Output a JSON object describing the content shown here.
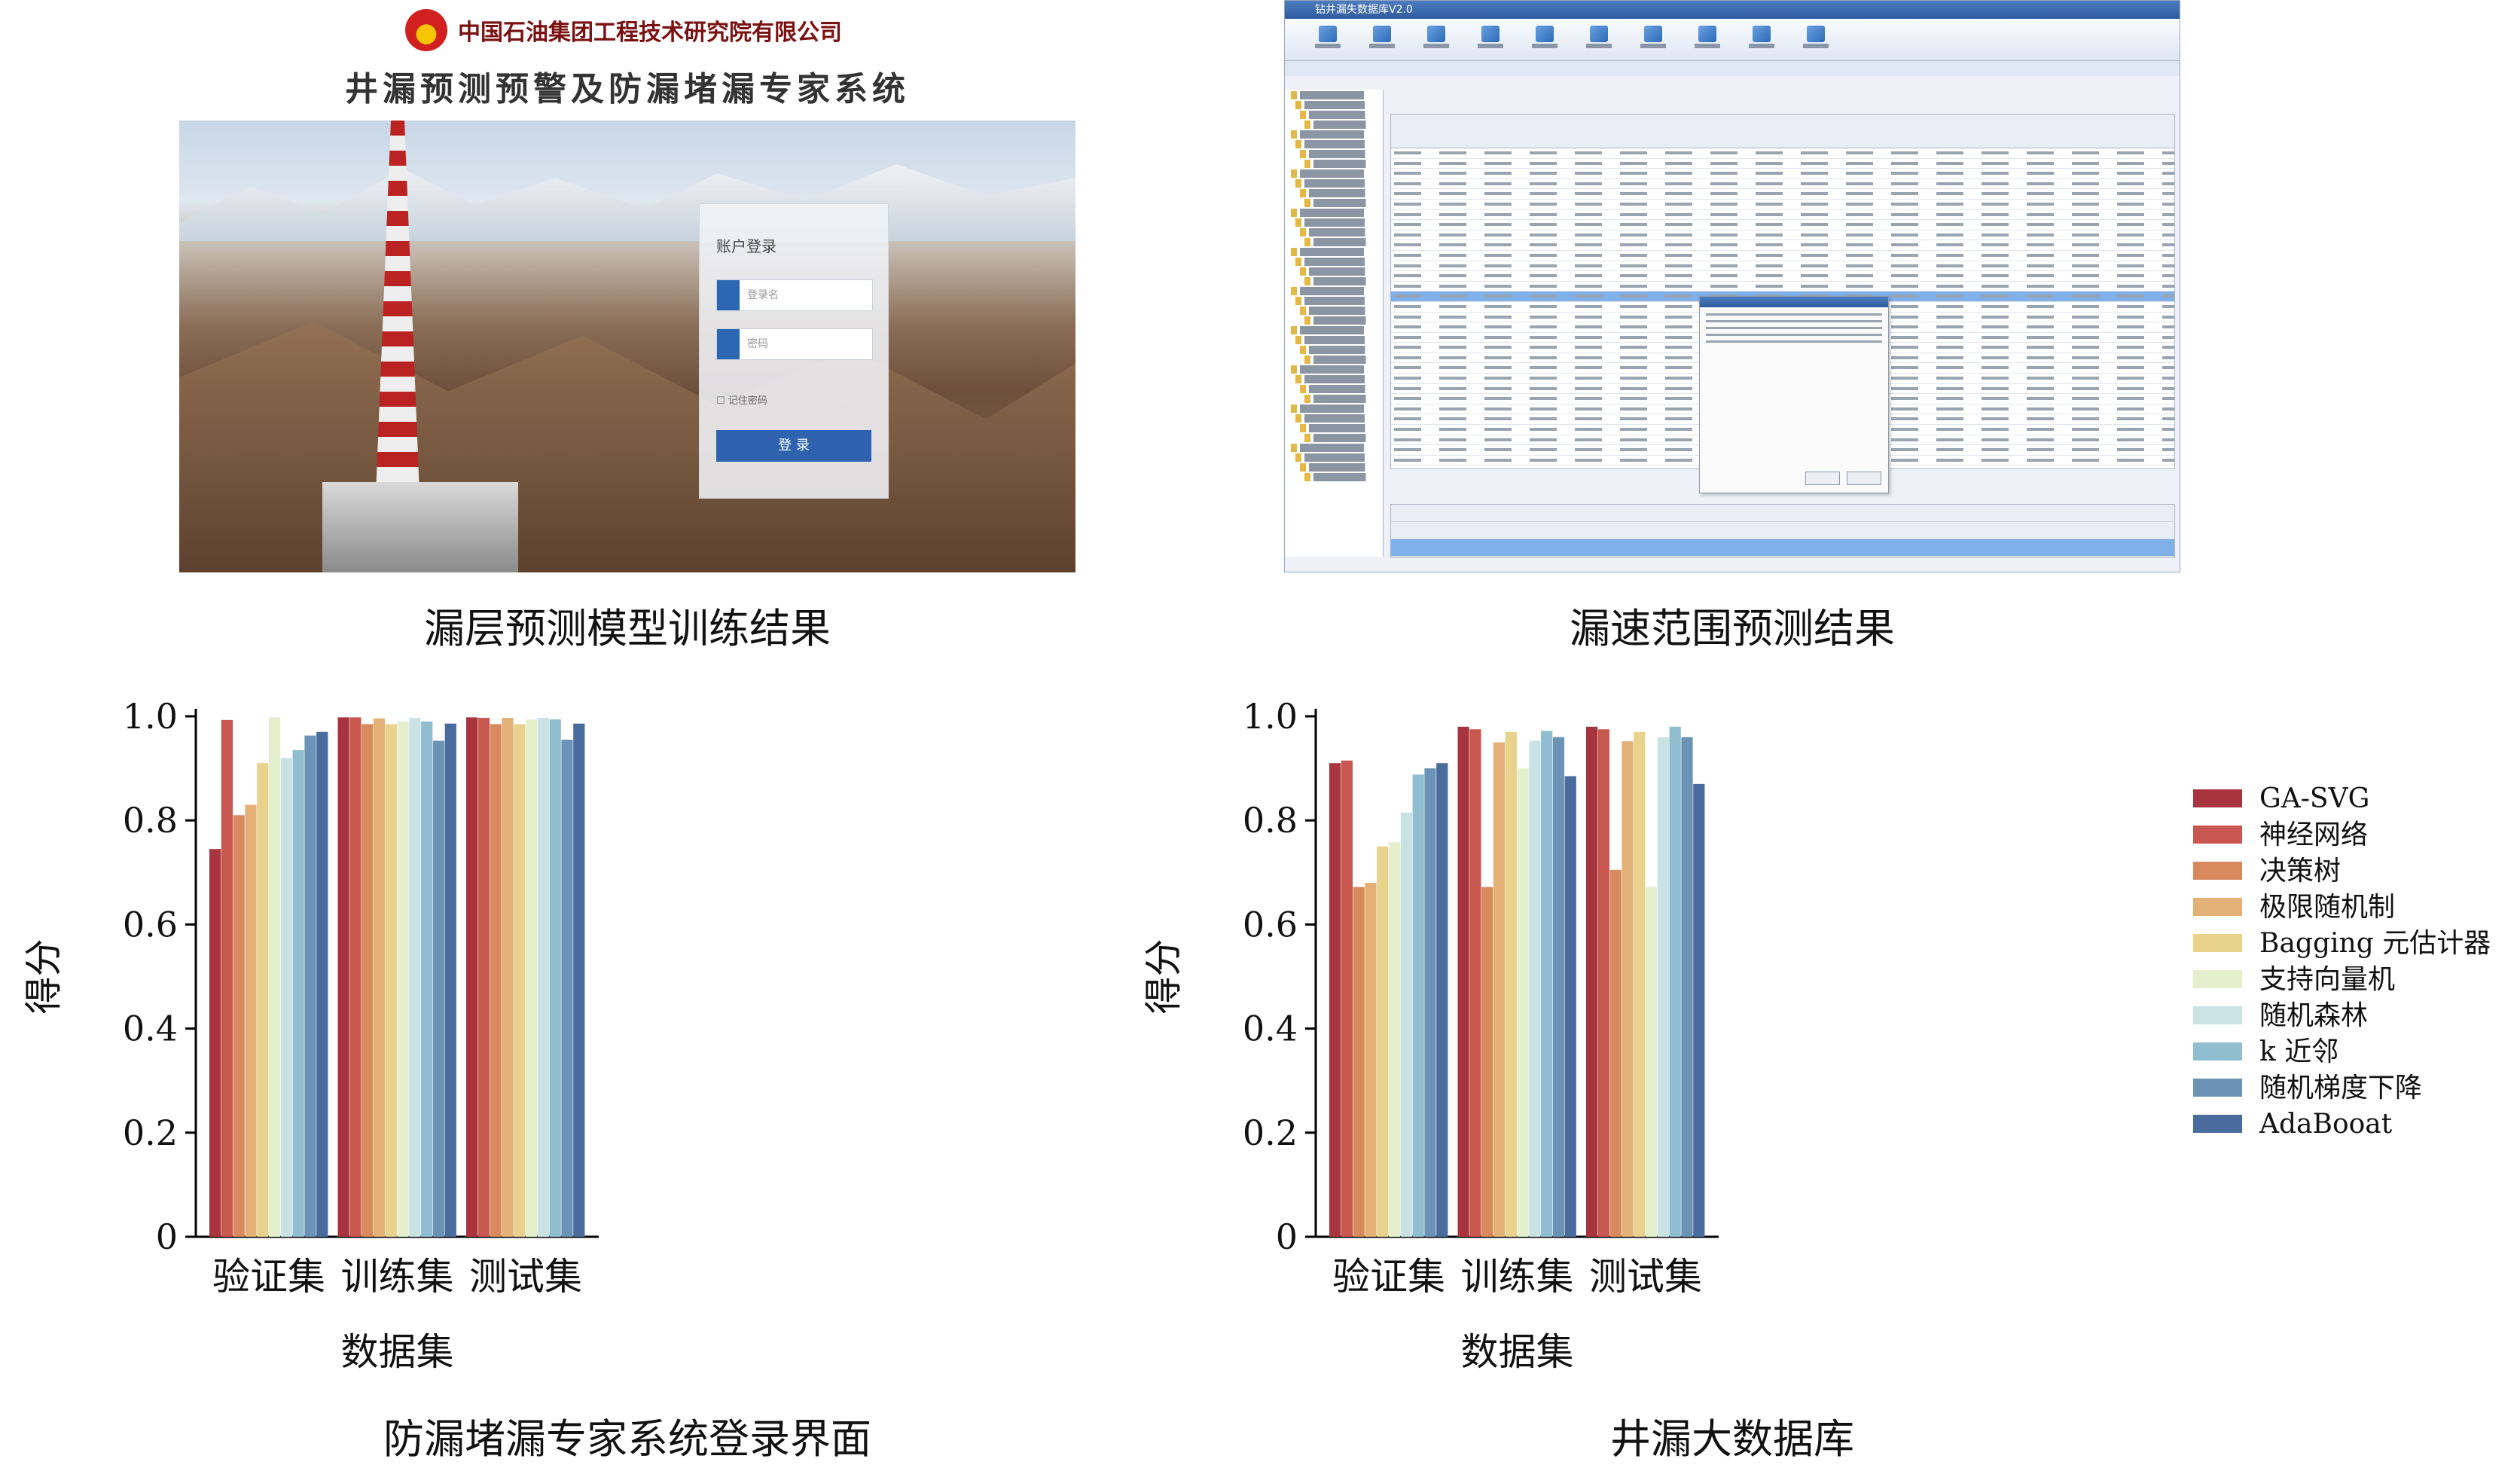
{
  "login_panel": {
    "company": "中国石油集团工程技术研究院有限公司",
    "system_title": "井漏预测预警及防漏堵漏专家系统",
    "card_title": "账户登录",
    "username_placeholder": "登录名",
    "password_placeholder": "密码",
    "remember_label": "记住密码",
    "login_button": "登 录"
  },
  "db_panel": {
    "window_title": "钻井漏失数据库V2.0"
  },
  "captions": {
    "top_left": "漏层预测模型训练结果",
    "top_right": "漏速范围预测结果",
    "bottom_left": "防漏堵漏专家系统登录界面",
    "bottom_right": "井漏大数据库"
  },
  "chart_data": [
    {
      "type": "bar",
      "categories": [
        "验证集",
        "训练集",
        "测试集"
      ],
      "xlabel": "数据集",
      "ylabel": "得分",
      "ylim": [
        0,
        1.0
      ],
      "yticks": [
        "0",
        "0.2",
        "0.4",
        "0.6",
        "0.8",
        "1.0"
      ],
      "series": [
        {
          "name": "GA-SVG",
          "values": [
            0.745,
            0.998,
            0.998
          ]
        },
        {
          "name": "神经网络",
          "values": [
            0.993,
            0.998,
            0.997
          ]
        },
        {
          "name": "决策树",
          "values": [
            0.81,
            0.985,
            0.985
          ]
        },
        {
          "name": "极限随机制",
          "values": [
            0.83,
            0.996,
            0.997
          ]
        },
        {
          "name": "Bagging 元估计器",
          "values": [
            0.91,
            0.985,
            0.985
          ]
        },
        {
          "name": "支持向量机",
          "values": [
            0.998,
            0.99,
            0.994
          ]
        },
        {
          "name": "随机森林",
          "values": [
            0.92,
            0.997,
            0.997
          ]
        },
        {
          "name": "k 近邻",
          "values": [
            0.935,
            0.99,
            0.994
          ]
        },
        {
          "name": "随机梯度下降",
          "values": [
            0.963,
            0.953,
            0.955
          ]
        },
        {
          "name": "AdaBooat",
          "values": [
            0.97,
            0.986,
            0.986
          ]
        }
      ]
    },
    {
      "type": "bar",
      "categories": [
        "验证集",
        "训练集",
        "测试集"
      ],
      "xlabel": "数据集",
      "ylabel": "得分",
      "ylim": [
        0,
        1.0
      ],
      "yticks": [
        "0",
        "0.2",
        "0.4",
        "0.6",
        "0.8",
        "1.0"
      ],
      "legend": "right",
      "series": [
        {
          "name": "GA-SVG",
          "values": [
            0.91,
            0.98,
            0.98
          ]
        },
        {
          "name": "神经网络",
          "values": [
            0.915,
            0.975,
            0.975
          ]
        },
        {
          "name": "决策树",
          "values": [
            0.672,
            0.672,
            0.705
          ]
        },
        {
          "name": "极限随机制",
          "values": [
            0.68,
            0.95,
            0.952
          ]
        },
        {
          "name": "Bagging 元估计器",
          "values": [
            0.75,
            0.97,
            0.97
          ]
        },
        {
          "name": "支持向量机",
          "values": [
            0.758,
            0.9,
            0.672
          ]
        },
        {
          "name": "随机森林",
          "values": [
            0.815,
            0.953,
            0.96
          ]
        },
        {
          "name": "k 近邻",
          "values": [
            0.888,
            0.972,
            0.98
          ]
        },
        {
          "name": "随机梯度下降",
          "values": [
            0.9,
            0.96,
            0.96
          ]
        },
        {
          "name": "AdaBooat",
          "values": [
            0.91,
            0.885,
            0.87
          ]
        }
      ]
    }
  ],
  "series_colors": [
    "#a8343f",
    "#c8574f",
    "#d88a5e",
    "#e3b077",
    "#e9d28c",
    "#e6efcd",
    "#c9e2e4",
    "#91bdd0",
    "#6b93b6",
    "#4a6b9e"
  ]
}
